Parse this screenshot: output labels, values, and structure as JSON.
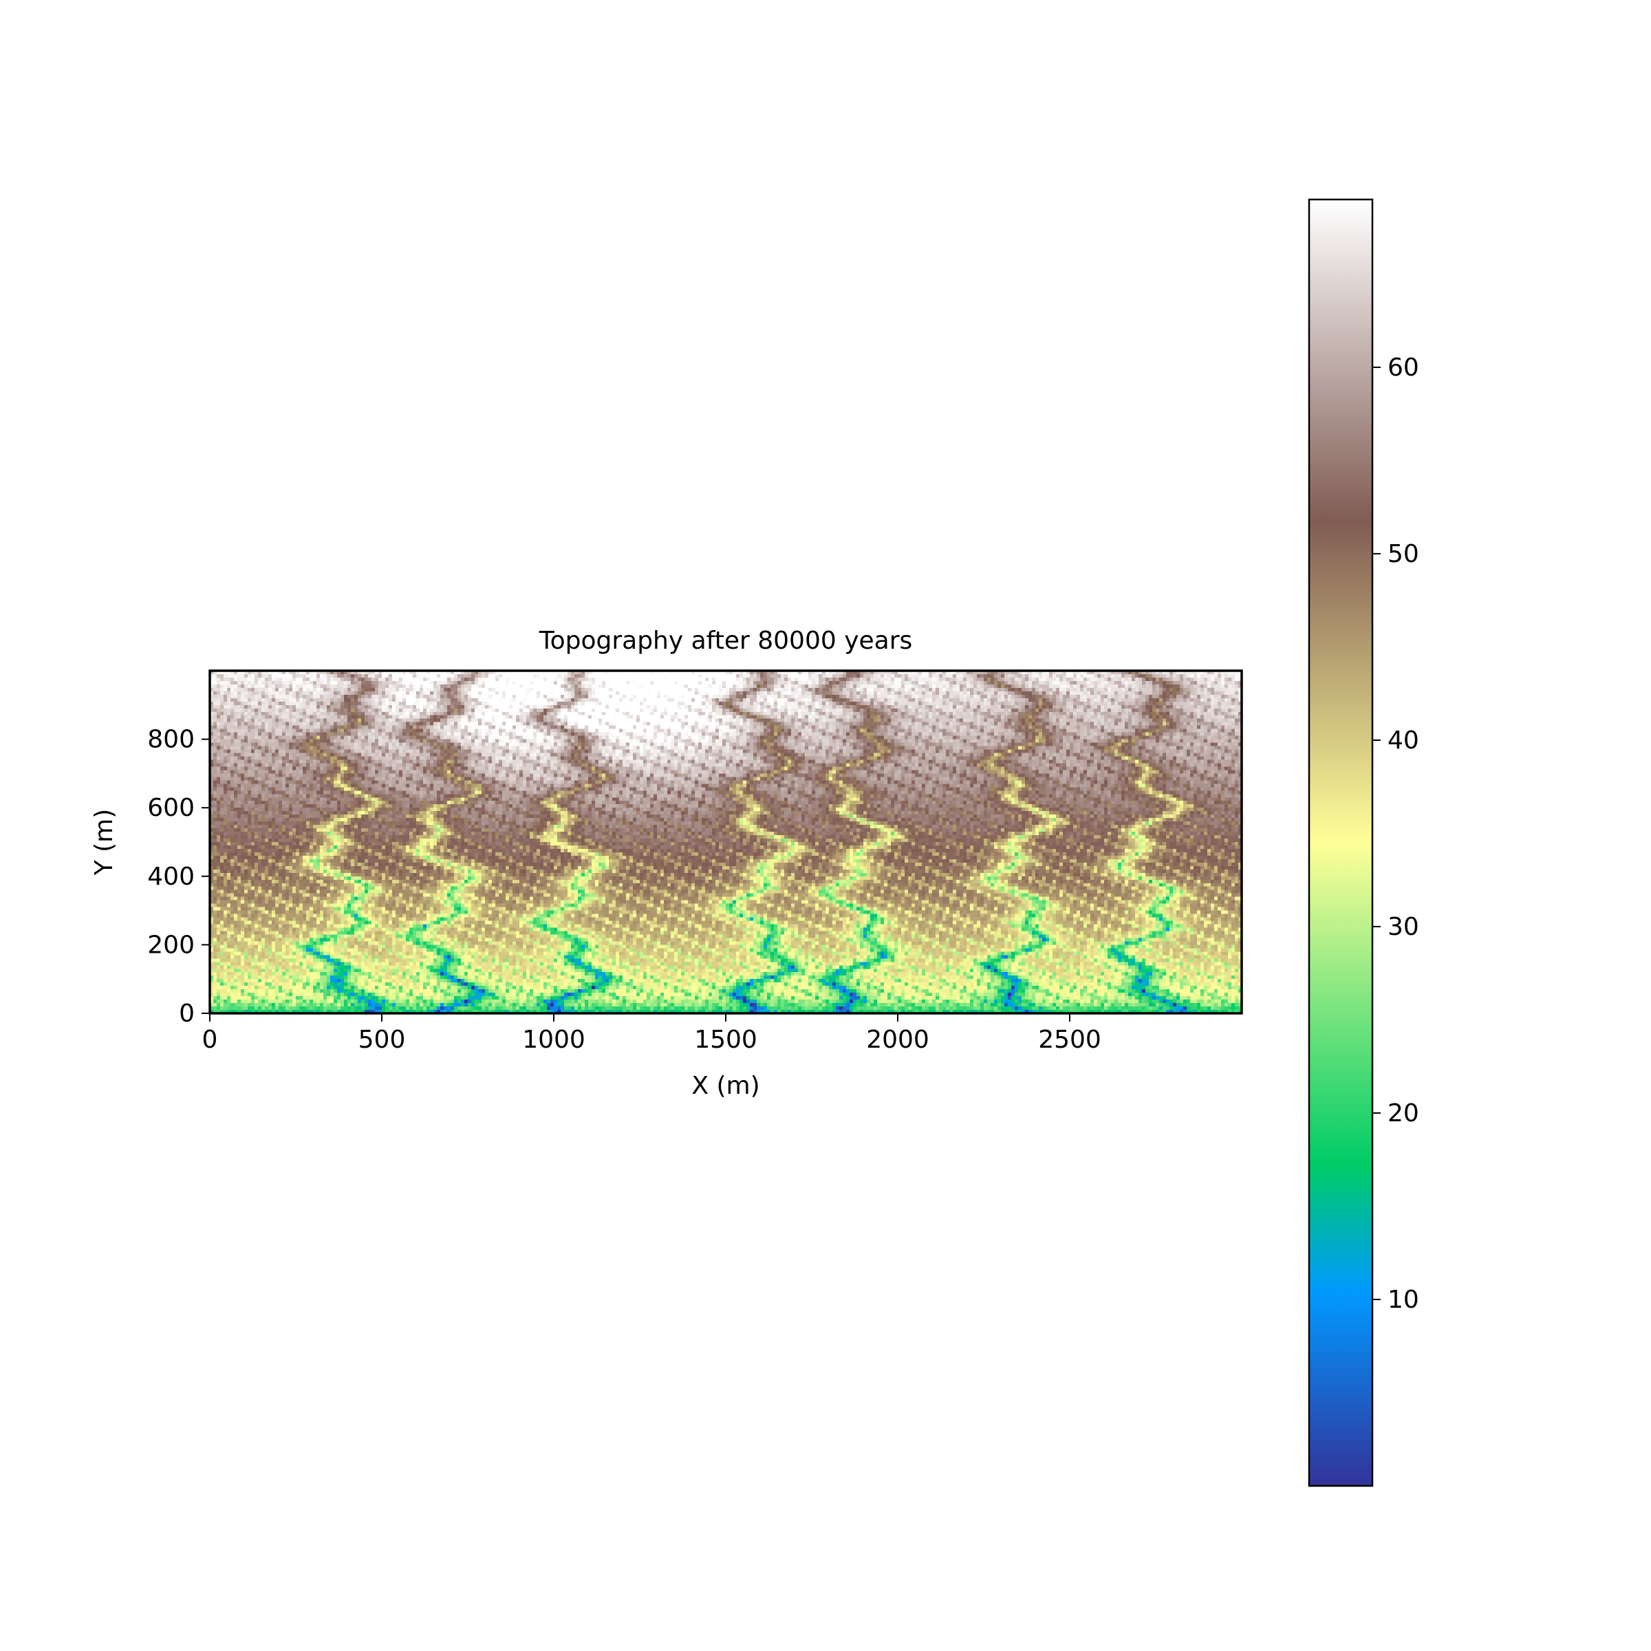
{
  "chart_data": {
    "type": "heatmap",
    "title": "Topography after 80000 years",
    "xlabel": "X (m)",
    "ylabel": "Y (m)",
    "xlim": [
      0,
      3000
    ],
    "ylim": [
      0,
      1000
    ],
    "xticks": [
      0,
      500,
      1000,
      1500,
      2000,
      2500
    ],
    "yticks": [
      0,
      200,
      400,
      600,
      800
    ],
    "colorbar": {
      "colormap": "terrain",
      "range": [
        0,
        69
      ],
      "ticks": [
        10,
        20,
        30,
        40,
        50,
        60
      ]
    },
    "grid": false,
    "description": "Eroded landscape elevation grid: high white/brown plateau near top with dendritic drainage channels (green/blue, low elevation) flowing toward the bottom edge at y=0."
  },
  "colors": {
    "terrain_stops": [
      [
        "0.00",
        "#333399"
      ],
      [
        "0.15",
        "#0199ff"
      ],
      [
        "0.25",
        "#00cc66"
      ],
      [
        "0.50",
        "#ffff99"
      ],
      [
        "0.75",
        "#805c54"
      ],
      [
        "1.00",
        "#ffffff"
      ]
    ]
  }
}
